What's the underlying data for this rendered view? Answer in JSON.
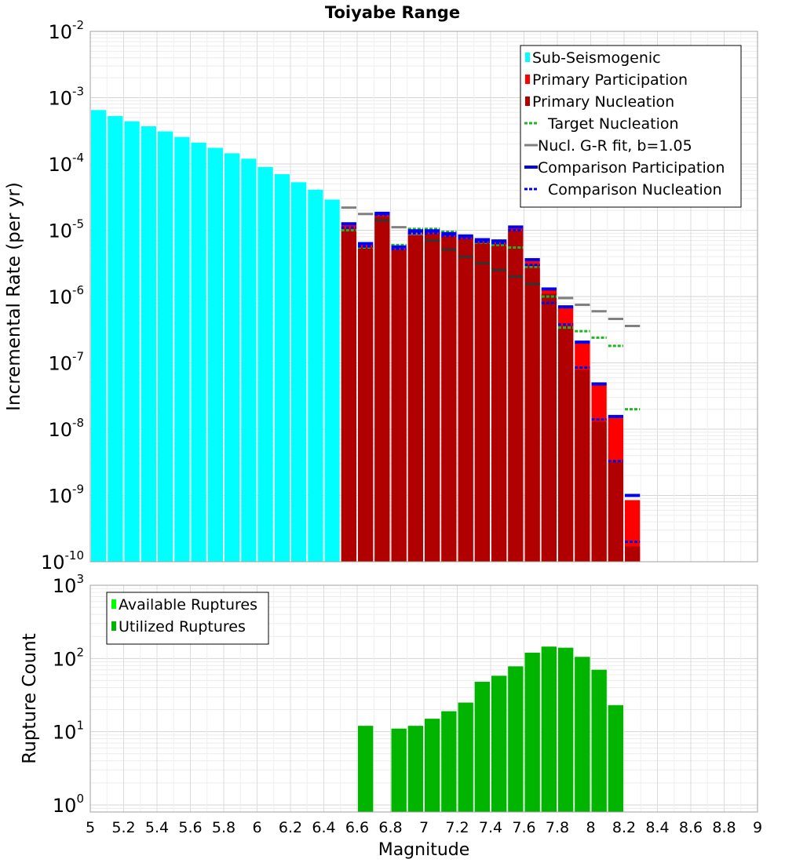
{
  "title": "Toiyabe Range",
  "colors": {
    "sub_seismogenic": "#00ffff",
    "primary_participation": "#ff0000",
    "primary_nucleation": "#b00000",
    "target_nucleation": "#22b422",
    "gr_fit": "#808080",
    "gr_fit_dark": "#333333",
    "comparison": "#0000ee",
    "available_ruptures": "#00ff00",
    "utilized_ruptures": "#00b400"
  },
  "chart_data": [
    {
      "type": "bar",
      "scale": "log",
      "title": "Toiyabe Range",
      "xlabel": "Magnitude",
      "ylabel": "Incremental Rate (per yr)",
      "xlim": [
        5,
        9
      ],
      "ylim": [
        1e-10,
        0.01
      ],
      "y_tick_exponents": [
        -10,
        -9,
        -8,
        -7,
        -6,
        -5,
        -4,
        -3,
        -2
      ],
      "legend": {
        "position": "top-right",
        "entries": [
          {
            "label": "Sub-Seismogenic",
            "style": "box",
            "color_key": "sub_seismogenic"
          },
          {
            "label": "Primary Participation",
            "style": "box",
            "color_key": "primary_participation"
          },
          {
            "label": "Primary Nucleation",
            "style": "box",
            "color_key": "primary_nucleation"
          },
          {
            "label": "Target Nucleation",
            "style": "dotted",
            "color_key": "target_nucleation"
          },
          {
            "label": "Nucl. G-R fit, b=1.05",
            "style": "solid",
            "color_key": "gr_fit"
          },
          {
            "label": "Comparison Participation",
            "style": "thick",
            "color_key": "comparison"
          },
          {
            "label": "Comparison Nucleation",
            "style": "dotted",
            "color_key": "comparison"
          }
        ]
      },
      "sub_seismogenic": {
        "x": [
          5.05,
          5.15,
          5.25,
          5.35,
          5.45,
          5.55,
          5.65,
          5.75,
          5.85,
          5.95,
          6.05,
          6.15,
          6.25,
          6.35,
          6.45
        ],
        "values": [
          0.00065,
          0.00053,
          0.00044,
          0.00037,
          0.00031,
          0.000255,
          0.00021,
          0.000175,
          0.000145,
          0.00012,
          9e-05,
          7e-05,
          5.3e-05,
          4.1e-05,
          2.9e-05
        ]
      },
      "x": [
        6.55,
        6.65,
        6.75,
        6.85,
        6.95,
        7.05,
        7.15,
        7.25,
        7.35,
        7.45,
        7.55,
        7.65,
        7.75,
        7.85,
        7.95,
        8.05,
        8.15,
        8.25
      ],
      "primary_participation": [
        1.2e-05,
        6e-06,
        1.75e-05,
        5.3e-06,
        9.5e-06,
        9.5e-06,
        8.7e-06,
        8e-06,
        7e-06,
        6.8e-06,
        1.08e-05,
        3.5e-06,
        1.25e-06,
        6.8e-07,
        2e-07,
        4.7e-08,
        1.5e-08,
        8.5e-10
      ],
      "primary_nucleation": [
        1.05e-05,
        5.5e-06,
        1.6e-05,
        5e-06,
        8.7e-06,
        8.7e-06,
        8e-06,
        7.4e-06,
        6.5e-06,
        6.2e-06,
        9.7e-06,
        3e-06,
        1.1e-06,
        3.6e-07,
        7.9e-08,
        1.3e-08,
        3.2e-09,
        1.7e-10
      ],
      "comparison_participation": [
        1.25e-05,
        6.3e-06,
        1.8e-05,
        5.6e-06,
        9.8e-06,
        9.8e-06,
        8.9e-06,
        8.2e-06,
        7.2e-06,
        6.9e-06,
        1.12e-05,
        3.6e-06,
        1.3e-06,
        7e-07,
        2.05e-07,
        4.8e-08,
        1.55e-08,
        1e-09
      ],
      "comparison_nucleation": [
        1.1e-05,
        5.7e-06,
        1.7e-05,
        5.2e-06,
        9e-06,
        9e-06,
        8.2e-06,
        7.6e-06,
        6.7e-06,
        6.4e-06,
        1e-05,
        3e-06,
        8e-07,
        3.8e-07,
        8.5e-08,
        1.4e-08,
        3.3e-09,
        2e-10
      ],
      "target_nucleation": [
        1e-05,
        5.5e-06,
        1.7e-05,
        6e-06,
        1.05e-05,
        1.05e-05,
        9.5e-06,
        8e-06,
        6.5e-06,
        6e-06,
        5.5e-06,
        2.8e-06,
        1e-06,
        3.4e-07,
        3e-07,
        2.4e-07,
        1.8e-07,
        2e-08
      ],
      "gr_fit": {
        "x": [
          6.55,
          6.65,
          6.75,
          6.85,
          6.95,
          7.05,
          7.15,
          7.25,
          7.35,
          7.45,
          7.55,
          7.65,
          7.75,
          7.85,
          7.95,
          8.05,
          8.15,
          8.25
        ],
        "values": [
          2.2e-05,
          1.76e-05,
          1.4e-05,
          1.11e-05,
          8.8e-06,
          7e-06,
          5.1e-06,
          4e-06,
          3.2e-06,
          2.5e-06,
          2e-06,
          1.55e-06,
          1e-06,
          9.5e-07,
          7.5e-07,
          6e-07,
          4.6e-07,
          3.6e-07
        ]
      }
    },
    {
      "type": "bar",
      "scale": "log",
      "xlabel": "Magnitude",
      "ylabel": "Rupture Count",
      "xlim": [
        5,
        9
      ],
      "ylim": [
        0.8,
        1000
      ],
      "y_tick_exponents": [
        0,
        1,
        2,
        3
      ],
      "x_ticks": [
        "5",
        "5.2",
        "5.4",
        "5.6",
        "5.8",
        "6",
        "6.2",
        "6.4",
        "6.6",
        "6.8",
        "7",
        "7.2",
        "7.4",
        "7.6",
        "7.8",
        "8",
        "8.2",
        "8.4",
        "8.6",
        "8.8",
        "9"
      ],
      "legend": {
        "position": "top-left",
        "entries": [
          {
            "label": "Available Ruptures",
            "style": "box",
            "color_key": "available_ruptures"
          },
          {
            "label": "Utilized Ruptures",
            "style": "box",
            "color_key": "utilized_ruptures"
          }
        ]
      },
      "x": [
        6.65,
        6.85,
        6.95,
        7.05,
        7.15,
        7.25,
        7.35,
        7.45,
        7.55,
        7.65,
        7.75,
        7.85,
        7.95,
        8.05,
        8.15
      ],
      "available_ruptures": [
        12,
        11,
        12,
        15,
        19,
        25,
        48,
        58,
        78,
        120,
        145,
        140,
        105,
        70,
        23
      ],
      "utilized_ruptures": [
        12,
        11,
        12,
        15,
        19,
        25,
        48,
        58,
        78,
        120,
        145,
        140,
        105,
        70,
        23
      ]
    }
  ]
}
